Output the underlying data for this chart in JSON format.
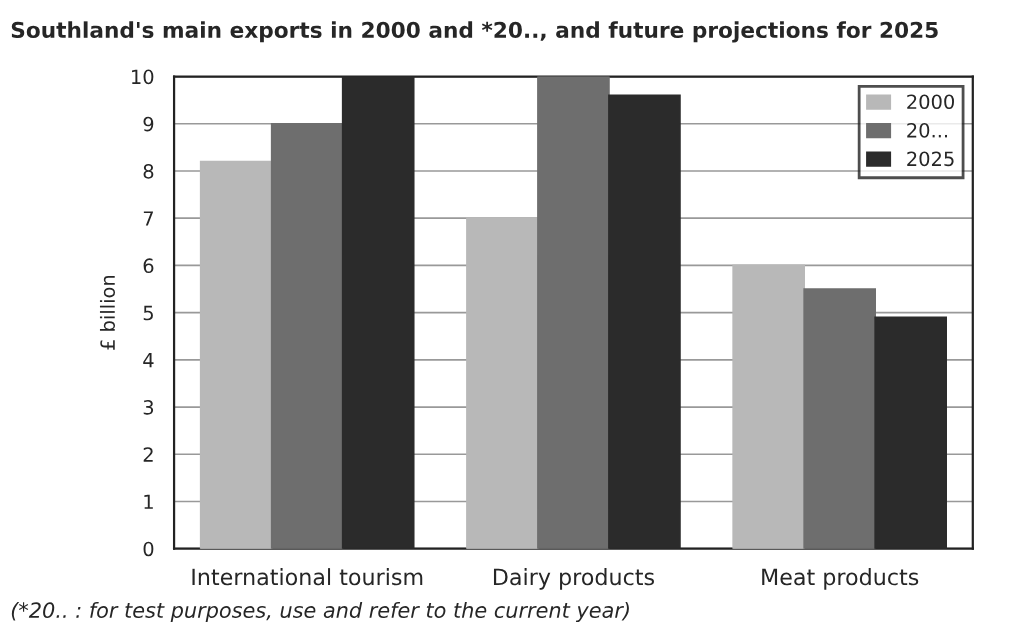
{
  "chart_data": {
    "type": "bar",
    "title": "Southland's main exports in 2000 and *20.., and future projections for 2025",
    "ylabel": "£ billion",
    "categories": [
      "International tourism",
      "Dairy products",
      "Meat products"
    ],
    "series": [
      {
        "name": "2000",
        "color": "#b8b8b8",
        "values": [
          8.2,
          7,
          6
        ]
      },
      {
        "name": "20...",
        "color": "#6e6e6e",
        "values": [
          9,
          10,
          5.5
        ]
      },
      {
        "name": "2025",
        "color": "#2b2b2b",
        "values": [
          10,
          9.6,
          4.9
        ]
      }
    ],
    "ylim": [
      0,
      10
    ],
    "yticks": [
      0,
      1,
      2,
      3,
      4,
      5,
      6,
      7,
      8,
      9,
      10
    ],
    "grid": "y",
    "legend": "top right",
    "annotations": [
      "(*20.. : for test purposes, use and refer to the current year)"
    ]
  }
}
